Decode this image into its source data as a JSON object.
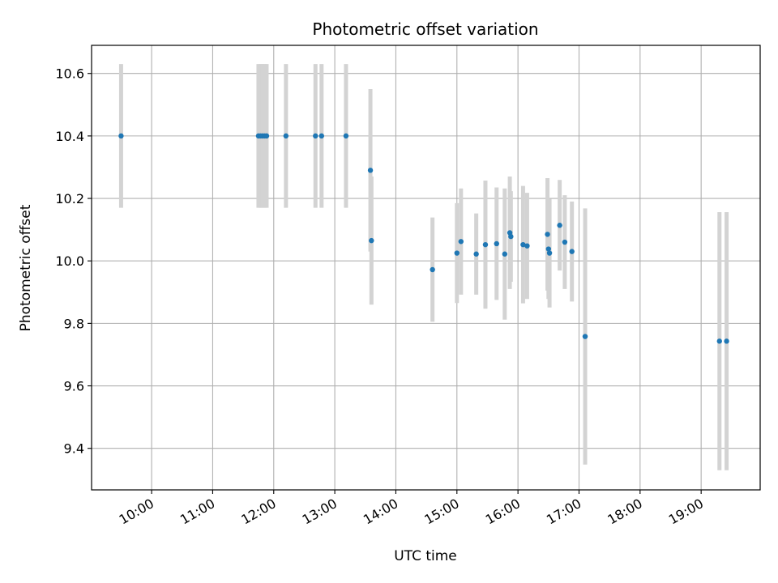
{
  "chart_data": {
    "type": "scatter",
    "title": "Photometric offset variation",
    "xlabel": "UTC time",
    "ylabel": "Photometric offset",
    "x_ticks": [
      "10:00",
      "11:00",
      "12:00",
      "13:00",
      "14:00",
      "15:00",
      "16:00",
      "17:00",
      "18:00",
      "19:00"
    ],
    "y_ticks": [
      "9.4",
      "9.6",
      "9.8",
      "10.0",
      "10.2",
      "10.4",
      "10.6"
    ],
    "xlim": [
      "09:01",
      "19:58"
    ],
    "ylim": [
      9.267,
      10.69
    ],
    "grid": true,
    "colors": {
      "point": "#1f77b4",
      "errorbar": "#d3d3d3",
      "grid": "#b0b0b0"
    },
    "points": [
      {
        "x": "09:30",
        "y": 10.4,
        "err": 0.23
      },
      {
        "x": "11:45",
        "y": 10.4,
        "err": 0.23
      },
      {
        "x": "11:47",
        "y": 10.4,
        "err": 0.23
      },
      {
        "x": "11:49",
        "y": 10.4,
        "err": 0.23
      },
      {
        "x": "11:51",
        "y": 10.4,
        "err": 0.23
      },
      {
        "x": "11:53",
        "y": 10.4,
        "err": 0.23
      },
      {
        "x": "12:12",
        "y": 10.4,
        "err": 0.23
      },
      {
        "x": "12:41",
        "y": 10.4,
        "err": 0.23
      },
      {
        "x": "12:47",
        "y": 10.4,
        "err": 0.23
      },
      {
        "x": "13:11",
        "y": 10.4,
        "err": 0.23
      },
      {
        "x": "13:35",
        "y": 10.29,
        "err": 0.26
      },
      {
        "x": "13:36",
        "y": 10.065,
        "err": 0.205
      },
      {
        "x": "14:36",
        "y": 9.972,
        "err": 0.167
      },
      {
        "x": "15:00",
        "y": 10.025,
        "err": 0.16
      },
      {
        "x": "15:04",
        "y": 10.062,
        "err": 0.17
      },
      {
        "x": "15:19",
        "y": 10.022,
        "err": 0.13
      },
      {
        "x": "15:28",
        "y": 10.052,
        "err": 0.205
      },
      {
        "x": "15:39",
        "y": 10.055,
        "err": 0.18
      },
      {
        "x": "15:47",
        "y": 10.022,
        "err": 0.21
      },
      {
        "x": "15:52",
        "y": 10.09,
        "err": 0.18
      },
      {
        "x": "15:53",
        "y": 10.078,
        "err": 0.145
      },
      {
        "x": "16:05",
        "y": 10.052,
        "err": 0.188
      },
      {
        "x": "16:09",
        "y": 10.048,
        "err": 0.17
      },
      {
        "x": "16:29",
        "y": 10.085,
        "err": 0.18
      },
      {
        "x": "16:30",
        "y": 10.038,
        "err": 0.16
      },
      {
        "x": "16:31",
        "y": 10.025,
        "err": 0.174
      },
      {
        "x": "16:41",
        "y": 10.114,
        "err": 0.145
      },
      {
        "x": "16:46",
        "y": 10.06,
        "err": 0.15
      },
      {
        "x": "16:53",
        "y": 10.03,
        "err": 0.16
      },
      {
        "x": "17:06",
        "y": 9.758,
        "err": 0.41
      },
      {
        "x": "19:18",
        "y": 9.743,
        "err": 0.413
      },
      {
        "x": "19:25",
        "y": 9.743,
        "err": 0.413
      }
    ]
  }
}
